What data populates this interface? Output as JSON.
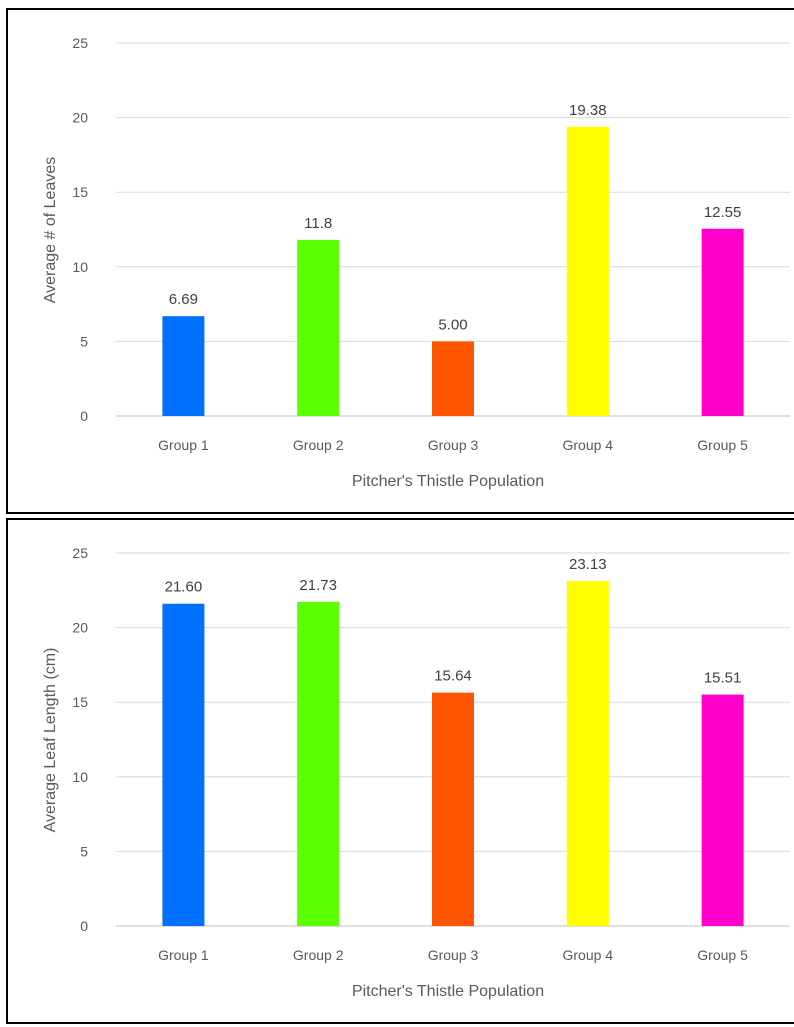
{
  "chart_data": [
    {
      "type": "bar",
      "title": "",
      "xlabel": "Pitcher's Thistle Population",
      "ylabel": "Average # of Leaves",
      "ylim": [
        0,
        25
      ],
      "yticks": [
        0,
        5,
        10,
        15,
        20,
        25
      ],
      "grid": true,
      "categories": [
        "Group 1",
        "Group 2",
        "Group 3",
        "Group 4",
        "Group 5"
      ],
      "values": [
        6.69,
        11.8,
        5.0,
        19.38,
        12.55
      ],
      "data_labels": [
        "6.69",
        "11.8",
        "5.00",
        "19.38",
        "12.55"
      ],
      "colors": [
        "#0070ff",
        "#5cff00",
        "#ff5400",
        "#ffff00",
        "#ff00cc"
      ]
    },
    {
      "type": "bar",
      "title": "",
      "xlabel": "Pitcher's Thistle Population",
      "ylabel": "Average Leaf Length (cm)",
      "ylim": [
        0,
        25
      ],
      "yticks": [
        0,
        5,
        10,
        15,
        20,
        25
      ],
      "grid": true,
      "categories": [
        "Group 1",
        "Group 2",
        "Group 3",
        "Group 4",
        "Group 5"
      ],
      "values": [
        21.6,
        21.73,
        15.64,
        23.13,
        15.51
      ],
      "data_labels": [
        "21.60",
        "21.73",
        "15.64",
        "23.13",
        "15.51"
      ],
      "colors": [
        "#0070ff",
        "#5cff00",
        "#ff5400",
        "#ffff00",
        "#ff00cc"
      ]
    }
  ]
}
